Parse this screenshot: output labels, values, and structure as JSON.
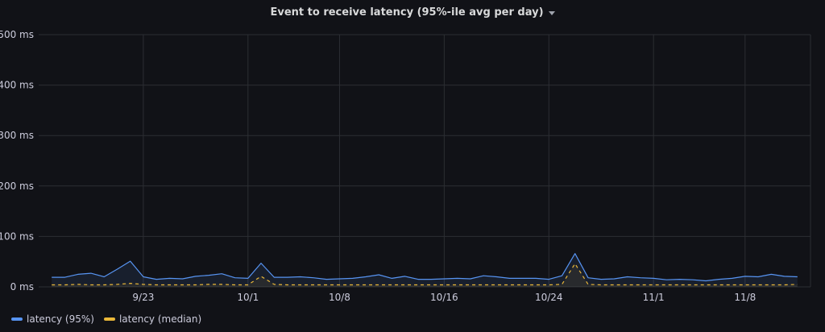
{
  "panel": {
    "title": "Event to receive latency (95%-ile avg per day)",
    "menu_icon": "caret-down-icon"
  },
  "colors": {
    "background": "#111217",
    "grid": "#2c2e33",
    "text": "#ccccdc",
    "series_95": "#5794f2",
    "series_median": "#eab839"
  },
  "chart_data": {
    "type": "line",
    "title": "Event to receive latency (95%-ile avg per day)",
    "xlabel": "",
    "ylabel": "",
    "x_axis": {
      "type": "date",
      "ticks": [
        "2023-09-23",
        "2023-10-01",
        "2023-10-08",
        "2023-10-16",
        "2023-10-24",
        "2023-11-01",
        "2023-11-08"
      ],
      "tick_labels": [
        "9/23",
        "10/1",
        "10/8",
        "10/16",
        "10/24",
        "11/1",
        "11/8"
      ],
      "range": [
        "2023-09-15",
        "2023-11-13"
      ]
    },
    "y_axis": {
      "unit": "ms",
      "ticks": [
        0,
        100,
        200,
        300,
        400,
        500
      ],
      "tick_labels": [
        "0 ms",
        "100 ms",
        "200 ms",
        "300 ms",
        "400 ms",
        "500 ms"
      ],
      "ylim": [
        0,
        500
      ]
    },
    "grid": true,
    "legend_placement": "bottom-left",
    "x": [
      "2023-09-16",
      "2023-09-17",
      "2023-09-18",
      "2023-09-19",
      "2023-09-20",
      "2023-09-21",
      "2023-09-22",
      "2023-09-23",
      "2023-09-24",
      "2023-09-25",
      "2023-09-26",
      "2023-09-27",
      "2023-09-28",
      "2023-09-29",
      "2023-09-30",
      "2023-10-01",
      "2023-10-02",
      "2023-10-03",
      "2023-10-04",
      "2023-10-05",
      "2023-10-06",
      "2023-10-07",
      "2023-10-08",
      "2023-10-09",
      "2023-10-10",
      "2023-10-11",
      "2023-10-12",
      "2023-10-13",
      "2023-10-14",
      "2023-10-15",
      "2023-10-16",
      "2023-10-17",
      "2023-10-18",
      "2023-10-19",
      "2023-10-20",
      "2023-10-21",
      "2023-10-22",
      "2023-10-23",
      "2023-10-24",
      "2023-10-25",
      "2023-10-26",
      "2023-10-27",
      "2023-10-28",
      "2023-10-29",
      "2023-10-30",
      "2023-10-31",
      "2023-11-01",
      "2023-11-02",
      "2023-11-03",
      "2023-11-04",
      "2023-11-05",
      "2023-11-06",
      "2023-11-07",
      "2023-11-08",
      "2023-11-09",
      "2023-11-10",
      "2023-11-11",
      "2023-11-12"
    ],
    "series": [
      {
        "name": "latency (95%)",
        "color": "#5794f2",
        "style": "solid",
        "values": [
          19,
          19,
          25,
          27,
          20,
          35,
          51,
          20,
          15,
          17,
          16,
          21,
          23,
          26,
          18,
          17,
          47,
          19,
          19,
          20,
          18,
          15,
          16,
          17,
          20,
          24,
          17,
          21,
          15,
          15,
          16,
          17,
          16,
          22,
          20,
          17,
          17,
          17,
          15,
          22,
          66,
          18,
          15,
          16,
          20,
          18,
          17,
          14,
          15,
          14,
          12,
          15,
          17,
          21,
          20,
          25,
          21,
          20
        ]
      },
      {
        "name": "latency (median)",
        "color": "#eab839",
        "style": "dashed",
        "values": [
          4,
          4,
          5,
          4,
          4,
          5,
          7,
          5,
          4,
          4,
          4,
          4,
          5,
          5,
          4,
          4,
          21,
          5,
          4,
          4,
          4,
          4,
          4,
          4,
          4,
          4,
          4,
          4,
          4,
          4,
          4,
          4,
          4,
          4,
          4,
          4,
          4,
          4,
          4,
          5,
          46,
          5,
          4,
          4,
          4,
          4,
          4,
          4,
          4,
          4,
          4,
          4,
          4,
          4,
          4,
          4,
          4,
          5
        ]
      }
    ]
  },
  "legend": {
    "items": [
      {
        "label": "latency (95%)",
        "color": "#5794f2"
      },
      {
        "label": "latency (median)",
        "color": "#eab839"
      }
    ]
  }
}
